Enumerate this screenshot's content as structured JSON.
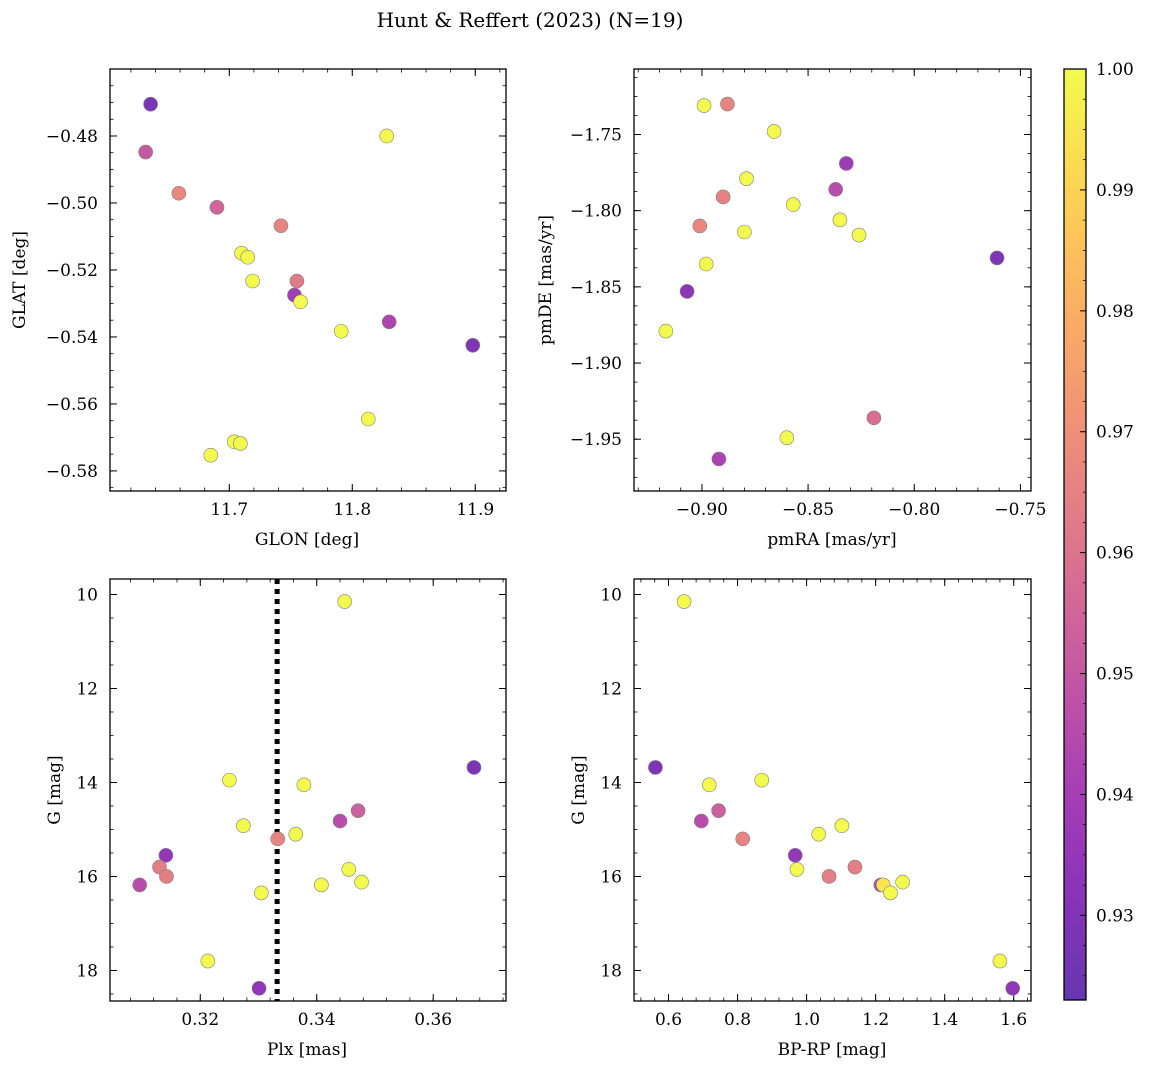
{
  "figure": {
    "title": "Hunt & Reffert (2023) (N=19)"
  },
  "colorbar": {
    "min": 0.923,
    "max": 1.0,
    "ticks": [
      0.93,
      0.94,
      0.95,
      0.96,
      0.97,
      0.98,
      0.99,
      1.0
    ],
    "tick_labels": [
      "0.93",
      "0.94",
      "0.95",
      "0.96",
      "0.97",
      "0.98",
      "0.99",
      "1.00"
    ],
    "colormap": "plasma"
  },
  "chart_data": [
    {
      "type": "scatter",
      "id": "glon-glat",
      "xlabel": "GLON [deg]",
      "ylabel": "GLAT [deg]",
      "xlim": [
        11.603,
        11.925
      ],
      "ylim": [
        -0.586,
        -0.46
      ],
      "y_inverted": false,
      "xticks": [
        11.7,
        11.8,
        11.9
      ],
      "xtick_labels": [
        "11.7",
        "11.8",
        "11.9"
      ],
      "yticks": [
        -0.48,
        -0.5,
        -0.52,
        -0.54,
        -0.56,
        -0.58
      ],
      "ytick_labels": [
        "−0.48",
        "−0.50",
        "−0.52",
        "−0.54",
        "−0.56",
        "−0.58"
      ],
      "points": [
        {
          "x": 11.636,
          "y": -0.4705,
          "c": 0.928
        },
        {
          "x": 11.632,
          "y": -0.4848,
          "c": 0.95
        },
        {
          "x": 11.659,
          "y": -0.4971,
          "c": 0.967
        },
        {
          "x": 11.69,
          "y": -0.5013,
          "c": 0.955
        },
        {
          "x": 11.742,
          "y": -0.5068,
          "c": 0.966
        },
        {
          "x": 11.828,
          "y": -0.48,
          "c": 1.0
        },
        {
          "x": 11.71,
          "y": -0.515,
          "c": 1.0
        },
        {
          "x": 11.715,
          "y": -0.5162,
          "c": 1.0
        },
        {
          "x": 11.719,
          "y": -0.5233,
          "c": 1.0
        },
        {
          "x": 11.755,
          "y": -0.5233,
          "c": 0.963
        },
        {
          "x": 11.753,
          "y": -0.5275,
          "c": 0.939
        },
        {
          "x": 11.758,
          "y": -0.5295,
          "c": 1.0
        },
        {
          "x": 11.791,
          "y": -0.5383,
          "c": 1.0
        },
        {
          "x": 11.83,
          "y": -0.5355,
          "c": 0.943
        },
        {
          "x": 11.898,
          "y": -0.5425,
          "c": 0.93
        },
        {
          "x": 11.813,
          "y": -0.5645,
          "c": 1.0
        },
        {
          "x": 11.704,
          "y": -0.5713,
          "c": 1.0
        },
        {
          "x": 11.709,
          "y": -0.5718,
          "c": 1.0
        },
        {
          "x": 11.685,
          "y": -0.5753,
          "c": 1.0
        }
      ]
    },
    {
      "type": "scatter",
      "id": "pmra-pmde",
      "xlabel": "pmRA [mas/yr]",
      "ylabel": "pmDE [mas/yr]",
      "xlim": [
        -0.932,
        -0.745
      ],
      "ylim": [
        -1.984,
        -1.707
      ],
      "y_inverted": false,
      "xticks": [
        -0.9,
        -0.85,
        -0.8,
        -0.75
      ],
      "xtick_labels": [
        "−0.90",
        "−0.85",
        "−0.80",
        "−0.75"
      ],
      "yticks": [
        -1.75,
        -1.8,
        -1.85,
        -1.9,
        -1.95
      ],
      "ytick_labels": [
        "−1.75",
        "−1.80",
        "−1.85",
        "−1.90",
        "−1.95"
      ],
      "points": [
        {
          "x": -0.899,
          "y": -1.731,
          "c": 1.0
        },
        {
          "x": -0.888,
          "y": -1.73,
          "c": 0.966
        },
        {
          "x": -0.866,
          "y": -1.748,
          "c": 1.0
        },
        {
          "x": -0.832,
          "y": -1.769,
          "c": 0.938
        },
        {
          "x": -0.837,
          "y": -1.786,
          "c": 0.946
        },
        {
          "x": -0.89,
          "y": -1.791,
          "c": 0.965
        },
        {
          "x": -0.879,
          "y": -1.779,
          "c": 1.0
        },
        {
          "x": -0.857,
          "y": -1.796,
          "c": 1.0
        },
        {
          "x": -0.835,
          "y": -1.806,
          "c": 1.0
        },
        {
          "x": -0.826,
          "y": -1.816,
          "c": 1.0
        },
        {
          "x": -0.88,
          "y": -1.814,
          "c": 1.0
        },
        {
          "x": -0.901,
          "y": -1.81,
          "c": 0.967
        },
        {
          "x": -0.898,
          "y": -1.835,
          "c": 1.0
        },
        {
          "x": -0.761,
          "y": -1.831,
          "c": 0.929
        },
        {
          "x": -0.907,
          "y": -1.853,
          "c": 0.933
        },
        {
          "x": -0.917,
          "y": -1.879,
          "c": 1.0
        },
        {
          "x": -0.819,
          "y": -1.936,
          "c": 0.958
        },
        {
          "x": -0.86,
          "y": -1.949,
          "c": 1.0
        },
        {
          "x": -0.892,
          "y": -1.963,
          "c": 0.942
        }
      ]
    },
    {
      "type": "scatter",
      "id": "plx-g",
      "xlabel": "Plx [mas]",
      "ylabel": "G [mag]",
      "xlim": [
        0.3045,
        0.3725
      ],
      "ylim": [
        18.65,
        9.67
      ],
      "y_inverted": true,
      "xticks": [
        0.32,
        0.34,
        0.36
      ],
      "xtick_labels": [
        "0.32",
        "0.34",
        "0.36"
      ],
      "yticks": [
        10,
        12,
        14,
        16,
        18
      ],
      "ytick_labels": [
        "10",
        "12",
        "14",
        "16",
        "18"
      ],
      "vline": {
        "x": 0.3332,
        "style": "dotted"
      },
      "points": [
        {
          "x": 0.3448,
          "y": 10.15,
          "c": 1.0
        },
        {
          "x": 0.367,
          "y": 13.68,
          "c": 0.929
        },
        {
          "x": 0.325,
          "y": 13.95,
          "c": 1.0
        },
        {
          "x": 0.3378,
          "y": 14.05,
          "c": 1.0
        },
        {
          "x": 0.3471,
          "y": 14.6,
          "c": 0.953
        },
        {
          "x": 0.344,
          "y": 14.82,
          "c": 0.946
        },
        {
          "x": 0.3274,
          "y": 14.92,
          "c": 1.0
        },
        {
          "x": 0.3364,
          "y": 15.1,
          "c": 1.0
        },
        {
          "x": 0.3333,
          "y": 15.2,
          "c": 0.966
        },
        {
          "x": 0.3141,
          "y": 15.55,
          "c": 0.935
        },
        {
          "x": 0.313,
          "y": 15.8,
          "c": 0.964
        },
        {
          "x": 0.3455,
          "y": 15.85,
          "c": 1.0
        },
        {
          "x": 0.3142,
          "y": 16.0,
          "c": 0.964
        },
        {
          "x": 0.3477,
          "y": 16.12,
          "c": 1.0
        },
        {
          "x": 0.3096,
          "y": 16.18,
          "c": 0.946
        },
        {
          "x": 0.3408,
          "y": 16.18,
          "c": 1.0
        },
        {
          "x": 0.3305,
          "y": 16.35,
          "c": 1.0
        },
        {
          "x": 0.3213,
          "y": 17.8,
          "c": 1.0
        },
        {
          "x": 0.3301,
          "y": 18.38,
          "c": 0.934
        }
      ]
    },
    {
      "type": "scatter",
      "id": "bprp-g",
      "xlabel": "BP-RP [mag]",
      "ylabel": "G [mag]",
      "xlim": [
        0.5,
        1.65
      ],
      "ylim": [
        18.65,
        9.67
      ],
      "y_inverted": true,
      "xticks": [
        0.6,
        0.8,
        1.0,
        1.2,
        1.4,
        1.6
      ],
      "xtick_labels": [
        "0.6",
        "0.8",
        "1.0",
        "1.2",
        "1.4",
        "1.6"
      ],
      "yticks": [
        10,
        12,
        14,
        16,
        18
      ],
      "ytick_labels": [
        "10",
        "12",
        "14",
        "16",
        "18"
      ],
      "points": [
        {
          "x": 0.645,
          "y": 10.15,
          "c": 1.0
        },
        {
          "x": 0.562,
          "y": 13.68,
          "c": 0.929
        },
        {
          "x": 0.87,
          "y": 13.95,
          "c": 1.0
        },
        {
          "x": 0.718,
          "y": 14.05,
          "c": 1.0
        },
        {
          "x": 0.745,
          "y": 14.6,
          "c": 0.953
        },
        {
          "x": 0.695,
          "y": 14.82,
          "c": 0.946
        },
        {
          "x": 1.102,
          "y": 14.92,
          "c": 1.0
        },
        {
          "x": 1.035,
          "y": 15.1,
          "c": 1.0
        },
        {
          "x": 0.815,
          "y": 15.2,
          "c": 0.966
        },
        {
          "x": 0.967,
          "y": 15.55,
          "c": 0.935
        },
        {
          "x": 1.14,
          "y": 15.8,
          "c": 0.964
        },
        {
          "x": 0.972,
          "y": 15.85,
          "c": 1.0
        },
        {
          "x": 1.065,
          "y": 16.0,
          "c": 0.964
        },
        {
          "x": 1.278,
          "y": 16.12,
          "c": 1.0
        },
        {
          "x": 1.215,
          "y": 16.18,
          "c": 0.946
        },
        {
          "x": 1.222,
          "y": 16.18,
          "c": 0.995
        },
        {
          "x": 1.243,
          "y": 16.35,
          "c": 1.0
        },
        {
          "x": 1.56,
          "y": 17.8,
          "c": 1.0
        },
        {
          "x": 1.597,
          "y": 18.38,
          "c": 0.934
        }
      ]
    }
  ]
}
